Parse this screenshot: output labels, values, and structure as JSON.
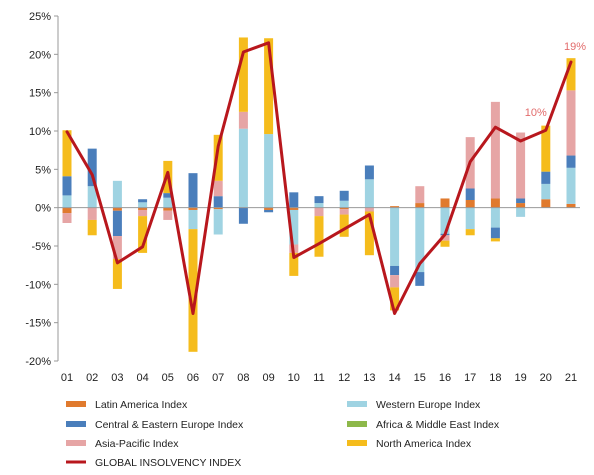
{
  "chart_data": {
    "type": "bar",
    "stacked": true,
    "categories": [
      "01",
      "02",
      "03",
      "04",
      "05",
      "06",
      "07",
      "08",
      "09",
      "10",
      "11",
      "12",
      "13",
      "14",
      "15",
      "16",
      "17",
      "18",
      "19",
      "20",
      "21"
    ],
    "ylim": [
      -20,
      25
    ],
    "yticks": [
      -20,
      -15,
      -10,
      -5,
      0,
      5,
      10,
      15,
      20,
      25
    ],
    "ytick_labels": [
      "-20%",
      "-15%",
      "-10%",
      "-5%",
      "0%",
      "5%",
      "10%",
      "15%",
      "20%",
      "25%"
    ],
    "grid": false,
    "legend_placement": "bottom",
    "series": [
      {
        "name": "Latin America Index",
        "color": "#E07A2E",
        "values": [
          -0.7,
          0,
          -0.4,
          -0.3,
          -0.4,
          -0.3,
          -0.2,
          0,
          -0.3,
          -0.3,
          0,
          -0.2,
          0,
          0.2,
          0.6,
          1.2,
          1.0,
          1.2,
          0.6,
          1.1,
          0.5
        ]
      },
      {
        "name": "Western Europe Index",
        "color": "#9FD3E2",
        "values": [
          1.6,
          2.8,
          3.5,
          0.7,
          1.3,
          -2.5,
          -3.3,
          10.3,
          9.6,
          -4.5,
          0.6,
          0.9,
          3.7,
          -7.6,
          -8.4,
          -3.4,
          -2.8,
          -2.6,
          -1.2,
          2.0,
          4.7
        ]
      },
      {
        "name": "Central & Eastern Europe Index",
        "color": "#4A7EBB",
        "values": [
          2.5,
          4.9,
          -3.3,
          0.4,
          0.6,
          4.5,
          1.5,
          -2.1,
          -0.3,
          2.0,
          0.9,
          1.3,
          1.8,
          -1.2,
          -1.8,
          -0.2,
          1.5,
          -1.4,
          0.6,
          1.6,
          1.6
        ]
      },
      {
        "name": "Africa & Middle East Index",
        "color": "#8DB84A",
        "values": [
          0,
          0,
          0,
          0,
          0,
          0,
          0,
          0,
          0,
          0,
          0,
          0,
          0,
          0,
          0,
          0,
          0,
          0,
          0,
          0,
          0
        ]
      },
      {
        "name": "Asia-Pacific Index",
        "color": "#E6A5A5",
        "values": [
          -1.3,
          -1.6,
          -3.0,
          -0.8,
          -1.2,
          0,
          2.0,
          2.2,
          0,
          -1.1,
          -1.1,
          -0.7,
          -0.5,
          -1.6,
          2.2,
          -0.7,
          6.7,
          12.6,
          8.6,
          0,
          8.5
        ]
      },
      {
        "name": "North America Index",
        "color": "#F5BC1C",
        "values": [
          6.0,
          -2.0,
          -3.9,
          -4.8,
          4.2,
          -16.0,
          6.0,
          9.7,
          12.5,
          -3.0,
          -5.3,
          -2.9,
          -5.7,
          -3.0,
          0,
          -0.8,
          -0.8,
          -0.4,
          0,
          6.0,
          4.2
        ]
      }
    ],
    "line": {
      "name": "GLOBAL INSOLVENCY INDEX",
      "color": "#B8171D",
      "values": [
        9.9,
        4.3,
        -7.2,
        -5.1,
        4.6,
        -13.8,
        8.0,
        20.3,
        21.5,
        -6.5,
        -4.7,
        -2.8,
        -0.9,
        -13.8,
        -7.3,
        -3.5,
        6.0,
        10.5,
        8.7,
        10.1,
        19.0
      ]
    },
    "annotations": [
      {
        "text": "10%",
        "category": "20",
        "value": 10.1,
        "color": "#E26B6B"
      },
      {
        "text": "19%",
        "category": "21",
        "value": 19.0,
        "color": "#E26B6B"
      }
    ]
  }
}
